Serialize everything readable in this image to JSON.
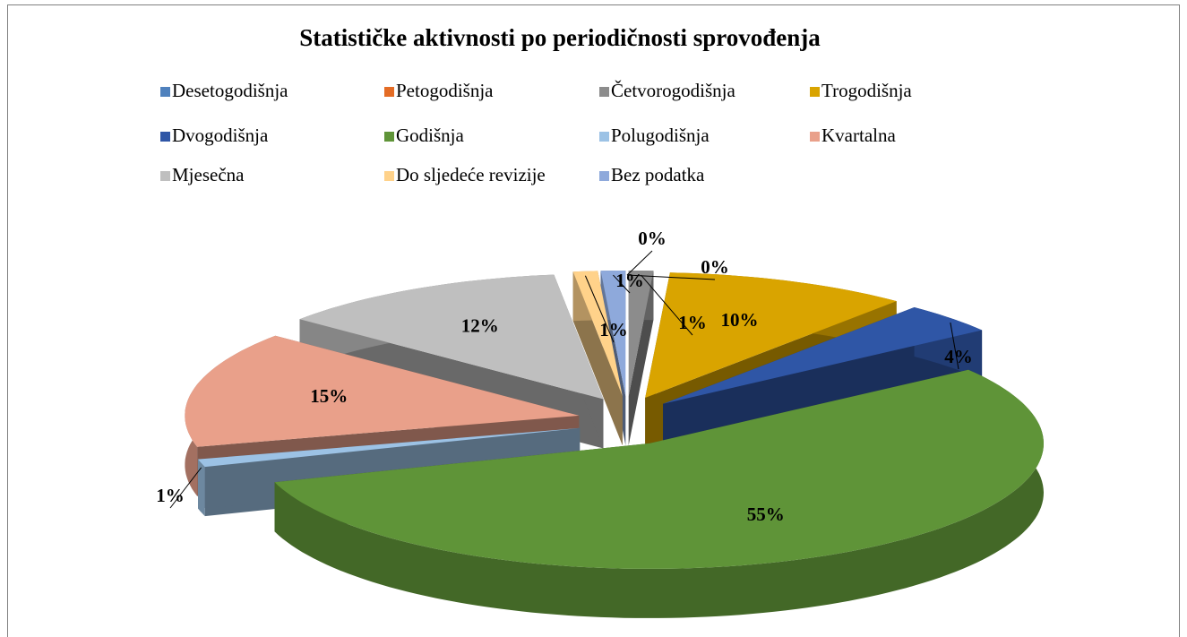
{
  "chart_data": {
    "type": "pie3d",
    "title": "Statističke aktivnosti po periodičnosti sprovođenja",
    "categories": [
      "Desetogodišnja",
      "Petogodišnja",
      "Četvorogodišnja",
      "Trogodišnja",
      "Dvogodišnja",
      "Godišnja",
      "Polugodišnja",
      "Kvartalna",
      "Mjesečna",
      "Do sljedeće revizije",
      "Bez podatka"
    ],
    "values": [
      0,
      0,
      1,
      10,
      4,
      55,
      1,
      15,
      12,
      1,
      1
    ],
    "value_labels": [
      "0%",
      "0%",
      "1%",
      "10%",
      "4%",
      "55%",
      "1%",
      "15%",
      "12%",
      "1%",
      "1%"
    ],
    "colors": [
      "#4f81bd",
      "#e46c25",
      "#8c8c8c",
      "#d9a400",
      "#2f56a6",
      "#5f9438",
      "#9cc2e5",
      "#e9a08a",
      "#bfbfbf",
      "#ffd28a",
      "#8ea9db"
    ],
    "legend": "top"
  }
}
